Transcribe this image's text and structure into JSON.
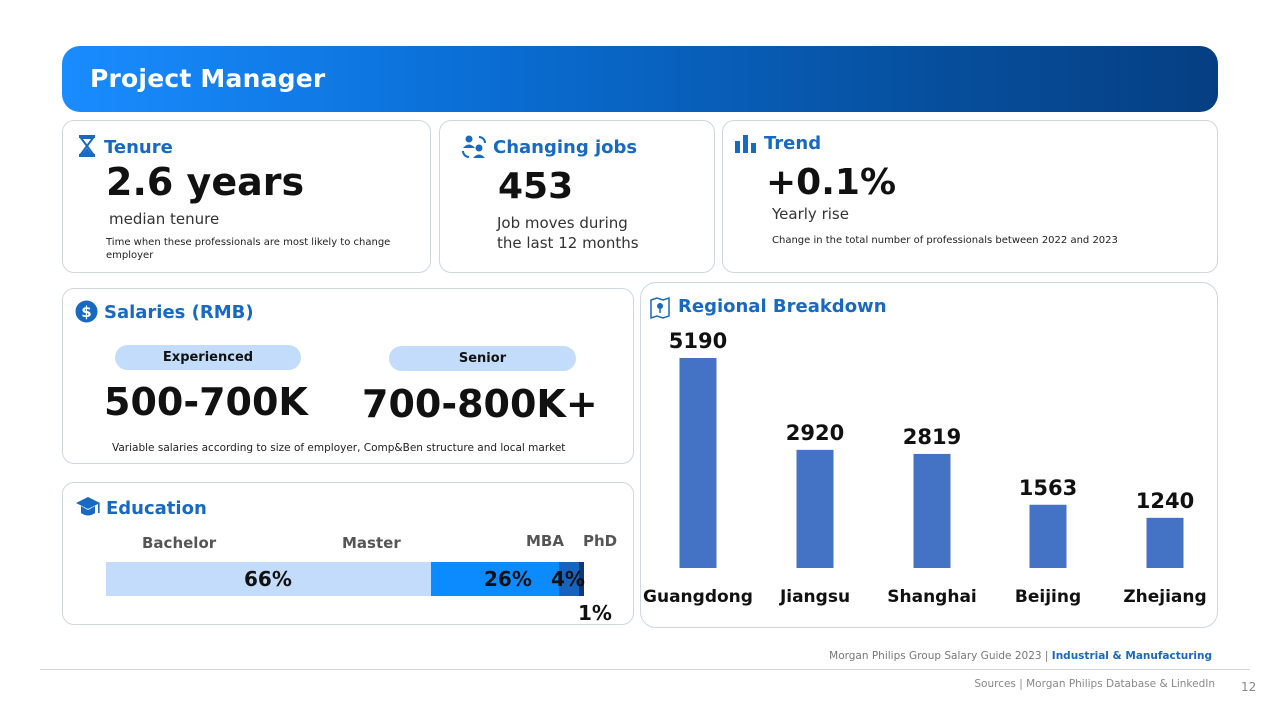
{
  "header": {
    "title": "Project Manager"
  },
  "tenure": {
    "title": "Tenure",
    "value": "2.6 years",
    "subtitle": "median tenure",
    "note": "Time when these professionals are most likely to  change employer"
  },
  "changing_jobs": {
    "title": "Changing jobs",
    "value": "453",
    "subtitle_line1": "Job moves during",
    "subtitle_line2": "the last 12 months"
  },
  "trend": {
    "title": "Trend",
    "value": "+0.1%",
    "subtitle": "Yearly rise",
    "note": "Change in the total number of professionals between 2022 and 2023"
  },
  "salaries": {
    "title": "Salaries (RMB)",
    "experienced_label": "Experienced",
    "experienced_value": "500-700K",
    "senior_label": "Senior",
    "senior_value": "700-800K+",
    "note": "Variable salaries according to size of employer, Comp&Ben structure and local market"
  },
  "education": {
    "title": "Education",
    "segments": [
      {
        "label": "Bachelor",
        "value_label": "66%",
        "value": 66,
        "color": "#c4dcfb"
      },
      {
        "label": "Master",
        "value_label": "26%",
        "value": 26,
        "color": "#0b8bff"
      },
      {
        "label": "MBA",
        "value_label": "4%",
        "value": 4,
        "color": "#1764c0"
      },
      {
        "label": "PhD",
        "value_label": "1%",
        "value": 1,
        "color": "#0a3a7a"
      }
    ]
  },
  "regional": {
    "title": "Regional Breakdown"
  },
  "chart_data": {
    "type": "bar",
    "title": "Regional Breakdown",
    "categories": [
      "Guangdong",
      "Jiangsu",
      "Shanghai",
      "Beijing",
      "Zhejiang"
    ],
    "values": [
      5190,
      2920,
      2819,
      1563,
      1240
    ],
    "value_labels": [
      "5190",
      "2920",
      "2819",
      "1563",
      "1240"
    ],
    "bar_color": "#4472c4",
    "xlabel": "",
    "ylabel": "",
    "ylim": [
      0,
      5190
    ],
    "grid": false
  },
  "footer": {
    "guide": "Morgan Philips Group Salary Guide 2023 | ",
    "sector": "Industrial & Manufacturing",
    "sources": "Sources | Morgan Philips Database & LinkedIn",
    "page": "12"
  }
}
